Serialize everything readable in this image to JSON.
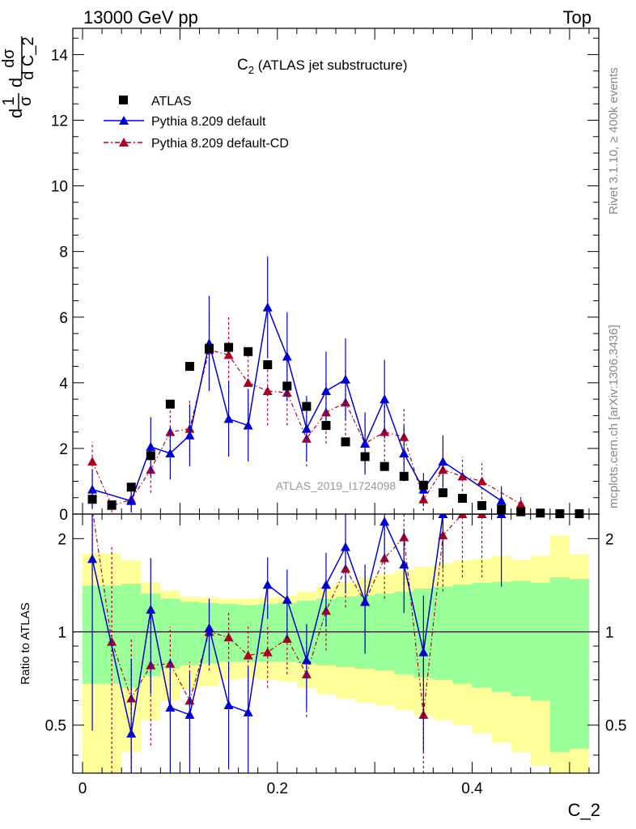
{
  "header": {
    "left": "13000 GeV pp",
    "right": "Top"
  },
  "side_labels": {
    "rivet": "Rivet 3.1.10, ≥ 400k events",
    "mcplots": "mcplots.cern.ch [arXiv:1306.3436]"
  },
  "watermark": "ATLAS_2019_I1724098",
  "colors": {
    "atlas": "#000000",
    "default": "#0000cc",
    "default_cd": "#aa0022",
    "band_inner": "#99ff99",
    "band_outer": "#ffff99"
  },
  "chart_data": [
    {
      "type": "scatter",
      "panel": "main",
      "title": "C",
      "title_sub": "2",
      "title_rest": " (ATLAS jet substructure)",
      "ylabel": {
        "a": "d",
        "b": "1",
        "c": "σ",
        "d": "d",
        "e": "dσ",
        "f": "d",
        "g": "C_2"
      },
      "xlim": [
        -0.01,
        0.53
      ],
      "ylim": [
        0,
        14.8
      ],
      "yticks": [
        0,
        2,
        4,
        6,
        8,
        10,
        12,
        14
      ],
      "legend": [
        "ATLAS",
        "Pythia 8.209 default",
        "Pythia 8.209 default-CD"
      ],
      "x": [
        0.01,
        0.03,
        0.05,
        0.07,
        0.09,
        0.11,
        0.13,
        0.15,
        0.17,
        0.19,
        0.21,
        0.23,
        0.25,
        0.27,
        0.29,
        0.31,
        0.33,
        0.35,
        0.37,
        0.39,
        0.41,
        0.43,
        0.45,
        0.47,
        0.49,
        0.51
      ],
      "series": [
        {
          "name": "ATLAS",
          "y": [
            0.45,
            0.28,
            0.82,
            1.78,
            3.35,
            4.5,
            5.05,
            5.08,
            4.95,
            4.55,
            3.9,
            3.28,
            2.7,
            2.2,
            1.75,
            1.45,
            1.15,
            0.88,
            0.65,
            0.48,
            0.26,
            0.14,
            0.07,
            0.03,
            0.01,
            0.01
          ],
          "err": []
        },
        {
          "name": "Pythia 8.209 default",
          "x": [
            0.01,
            0.05,
            0.07,
            0.09,
            0.11,
            0.13,
            0.15,
            0.17,
            0.19,
            0.21,
            0.23,
            0.25,
            0.27,
            0.29,
            0.31,
            0.33,
            0.35,
            0.37,
            0.43
          ],
          "y": [
            0.75,
            0.4,
            2.05,
            1.85,
            2.4,
            5.2,
            2.9,
            2.7,
            6.3,
            4.8,
            2.6,
            3.75,
            4.1,
            2.15,
            3.5,
            1.85,
            0.75,
            1.6,
            0.4
          ],
          "err": [
            0.6,
            0.35,
            0.9,
            0.8,
            0.95,
            1.45,
            1.15,
            1.1,
            1.55,
            1.35,
            1.0,
            1.2,
            1.25,
            0.95,
            1.2,
            0.85,
            0.5,
            0.8,
            0.45
          ]
        },
        {
          "name": "Pythia 8.209 default-CD",
          "x": [
            0.01,
            0.03,
            0.05,
            0.07,
            0.09,
            0.11,
            0.13,
            0.15,
            0.17,
            0.19,
            0.21,
            0.23,
            0.25,
            0.27,
            0.29,
            0.31,
            0.33,
            0.35,
            0.37,
            0.39,
            0.41,
            0.45
          ],
          "y": [
            1.6,
            0.25,
            0.45,
            1.35,
            2.5,
            2.6,
            5.0,
            4.85,
            4.0,
            3.75,
            3.7,
            2.3,
            3.1,
            3.4,
            2.15,
            2.5,
            2.35,
            0.45,
            1.35,
            1.15,
            1.0,
            0.3
          ],
          "err": [
            0.6,
            0.2,
            0.35,
            0.7,
            0.9,
            0.85,
            1.2,
            1.15,
            1.0,
            1.05,
            1.0,
            0.85,
            0.95,
            1.0,
            0.8,
            0.9,
            0.85,
            0.35,
            0.65,
            0.6,
            0.55,
            0.3
          ]
        }
      ]
    },
    {
      "type": "scatter",
      "panel": "ratio",
      "ylabel": "Ratio to ATLAS",
      "xlabel": "C_2",
      "xlim": [
        -0.01,
        0.53
      ],
      "ylim": [
        0.35,
        2.4
      ],
      "yscale": "log",
      "yticks": [
        0.5,
        1,
        2
      ],
      "ytick_labels": [
        "0.5",
        "1",
        "2"
      ],
      "xticks": [
        0,
        0.2,
        0.4
      ],
      "xtick_labels": [
        "0",
        "0.2",
        "0.4"
      ],
      "reference": 1,
      "bands": {
        "edges": [
          0.0,
          0.02,
          0.04,
          0.06,
          0.08,
          0.1,
          0.12,
          0.14,
          0.16,
          0.18,
          0.2,
          0.22,
          0.24,
          0.26,
          0.28,
          0.3,
          0.32,
          0.34,
          0.36,
          0.38,
          0.4,
          0.42,
          0.44,
          0.46,
          0.48,
          0.5,
          0.52
        ],
        "inner_low": [
          0.68,
          0.68,
          0.66,
          0.72,
          0.76,
          0.78,
          0.79,
          0.8,
          0.8,
          0.8,
          0.8,
          0.79,
          0.78,
          0.77,
          0.76,
          0.75,
          0.73,
          0.71,
          0.7,
          0.68,
          0.66,
          0.64,
          0.62,
          0.6,
          0.41,
          0.42
        ],
        "inner_high": [
          1.41,
          1.41,
          1.43,
          1.33,
          1.28,
          1.25,
          1.24,
          1.23,
          1.22,
          1.23,
          1.24,
          1.26,
          1.28,
          1.3,
          1.31,
          1.33,
          1.35,
          1.38,
          1.4,
          1.42,
          1.44,
          1.45,
          1.46,
          1.44,
          1.5,
          1.48
        ],
        "outer_low": [
          0.35,
          0.35,
          0.41,
          0.52,
          0.6,
          0.65,
          0.67,
          0.7,
          0.71,
          0.7,
          0.69,
          0.66,
          0.63,
          0.61,
          0.59,
          0.58,
          0.56,
          0.54,
          0.52,
          0.5,
          0.47,
          0.44,
          0.41,
          0.37,
          0.35,
          0.35
        ],
        "outer_high": [
          1.79,
          1.79,
          1.7,
          1.45,
          1.36,
          1.3,
          1.29,
          1.28,
          1.28,
          1.29,
          1.31,
          1.35,
          1.4,
          1.45,
          1.5,
          1.53,
          1.58,
          1.62,
          1.66,
          1.7,
          1.72,
          1.76,
          1.71,
          1.76,
          2.05,
          1.78
        ]
      },
      "series": [
        {
          "name": "Pythia 8.209 default",
          "x": [
            0.01,
            0.05,
            0.07,
            0.09,
            0.11,
            0.13,
            0.15,
            0.17,
            0.19,
            0.21,
            0.23,
            0.25,
            0.27,
            0.29,
            0.31,
            0.33,
            0.35,
            0.37,
            0.43
          ],
          "y": [
            1.72,
            0.47,
            1.18,
            0.57,
            0.54,
            1.03,
            0.58,
            0.55,
            1.42,
            1.27,
            0.81,
            1.42,
            1.88,
            1.25,
            2.27,
            1.65,
            0.86,
            2.4,
            2.4
          ],
          "err": [
            1.24,
            0.35,
            0.55,
            0.25,
            0.2,
            0.25,
            0.22,
            0.22,
            0.32,
            0.32,
            0.25,
            0.38,
            0.55,
            0.4,
            0.6,
            0.5,
            0.45,
            0.8,
            1.0
          ]
        },
        {
          "name": "Pythia 8.209 default-CD",
          "x": [
            0.01,
            0.03,
            0.05,
            0.07,
            0.09,
            0.11,
            0.13,
            0.15,
            0.17,
            0.19,
            0.21,
            0.23,
            0.25,
            0.27,
            0.29,
            0.31,
            0.33,
            0.35,
            0.37,
            0.39,
            0.41
          ],
          "y": [
            2.5,
            0.93,
            0.61,
            0.78,
            0.79,
            0.6,
            1.0,
            0.96,
            0.84,
            0.86,
            0.95,
            0.73,
            1.17,
            1.6,
            1.25,
            1.73,
            2.02,
            0.54,
            2.05,
            2.4,
            2.4
          ],
          "err": [
            0.8,
            0.95,
            0.35,
            0.35,
            0.25,
            0.2,
            0.25,
            0.2,
            0.2,
            0.2,
            0.22,
            0.2,
            0.3,
            0.4,
            0.35,
            0.45,
            0.6,
            0.4,
            0.7,
            0.9,
            0.9
          ]
        }
      ]
    }
  ]
}
